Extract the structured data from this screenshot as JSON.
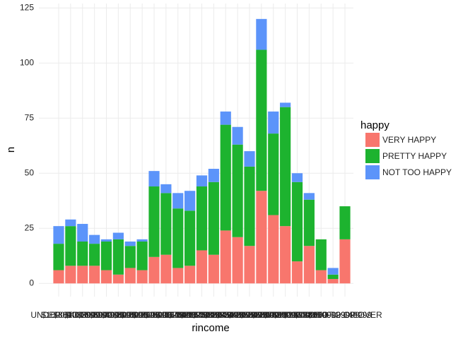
{
  "chart_data": {
    "type": "stacked_bar",
    "x_label": "rincome",
    "y_label": "n",
    "legend_title": "happy",
    "legend_position": "right",
    "grid": true,
    "categories": [
      "UNDER $1000",
      "$1000 TO 2999",
      "$3000 TO 3999",
      "$4000 TO 4999",
      "$5000 TO 5999",
      "$6000 TO 6999",
      "$7000 TO 7999",
      "$8000 TO 9999",
      "$10000 TO 12499",
      "$12500 TO 14999",
      "$15000 TO 17499",
      "$17500 TO 19999",
      "$20000 TO 22499",
      "$22500 TO 24999",
      "$25000 TO 29999",
      "$30000 TO 34999",
      "$35000 TO 39999",
      "$40000 TO 49999",
      "$50000 TO 59999",
      "$60000 TO 74999",
      "$75000 TO 89999",
      "$90000 TO 109999",
      "$110000 TO 129999",
      "$130000 TO 149999",
      "$150000 OR OVER"
    ],
    "series": [
      {
        "name": "VERY HAPPY",
        "color": "#F8766D",
        "values": [
          6,
          8,
          8,
          8,
          6,
          4,
          7,
          6,
          12,
          13,
          7,
          8,
          15,
          13,
          24,
          21,
          17,
          42,
          31,
          26,
          10,
          17,
          6,
          2,
          20
        ]
      },
      {
        "name": "PRETTY HAPPY",
        "color": "#1DB32F",
        "values": [
          12,
          18,
          11,
          10,
          13,
          16,
          10,
          13,
          32,
          28,
          27,
          25,
          29,
          33,
          48,
          42,
          36,
          64,
          37,
          54,
          36,
          21,
          14,
          2,
          15
        ]
      },
      {
        "name": "NOT TOO HAPPY",
        "color": "#5C94FA",
        "values": [
          8,
          3,
          8,
          4,
          1,
          3,
          2,
          1,
          7,
          4,
          7,
          9,
          5,
          6,
          6,
          8,
          7,
          14,
          10,
          2,
          4,
          3,
          0,
          3,
          0
        ]
      }
    ],
    "ylim": [
      -6,
      127
    ],
    "yticks": [
      0,
      25,
      50,
      75,
      100,
      125
    ]
  }
}
